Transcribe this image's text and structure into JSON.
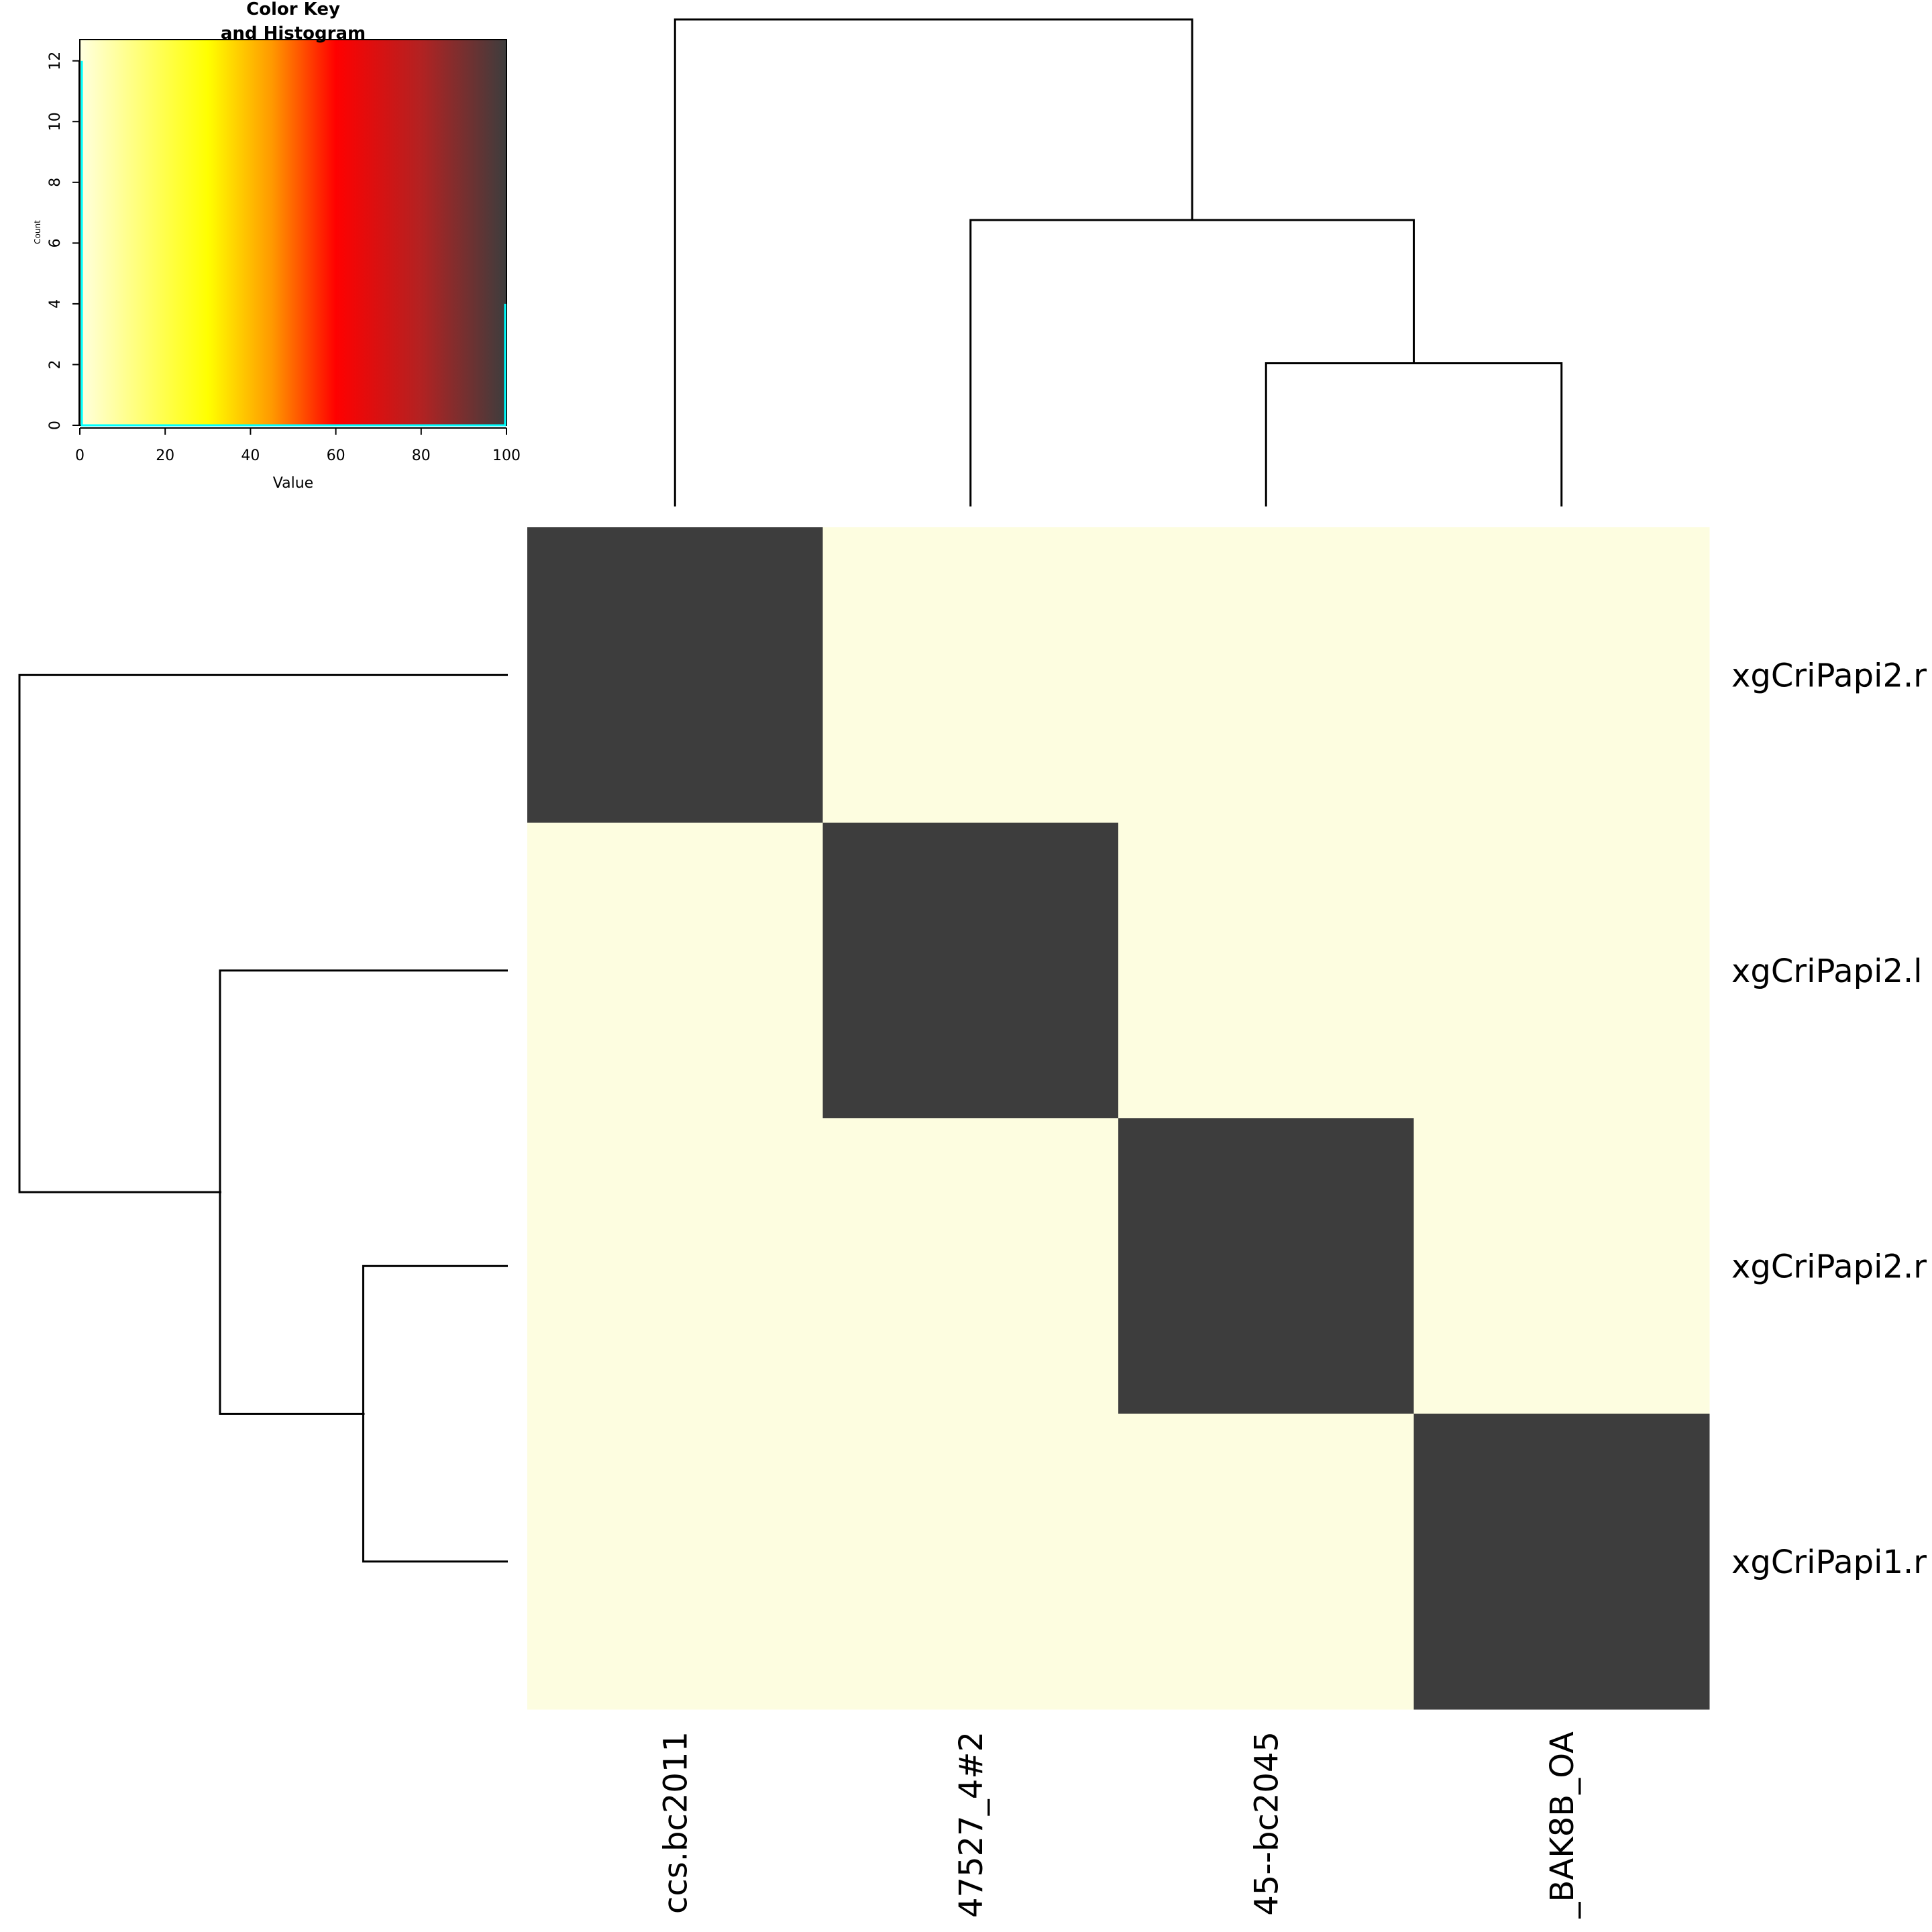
{
  "chart_data": {
    "type": "heatmap",
    "row_labels": [
      "xgCriPapi2.r",
      "xgCriPapi2.l",
      "xgCriPapi2.r",
      "xgCriPapi1.r"
    ],
    "col_labels": [
      "ccs.bc2011",
      "47527_4#2",
      "45--bc2045",
      "_BAK8B_OA"
    ],
    "values": [
      [
        100,
        0,
        0,
        0
      ],
      [
        0,
        100,
        0,
        0
      ],
      [
        0,
        0,
        100,
        0
      ],
      [
        0,
        0,
        0,
        100
      ]
    ],
    "dendrogram_col": {
      "merges": [
        [
          2,
          3,
          1.0
        ],
        [
          1,
          "c23",
          2.0
        ],
        [
          0,
          "c123",
          3.4
        ]
      ]
    },
    "dendrogram_row": {
      "merges": [
        [
          2,
          3,
          1.0
        ],
        [
          1,
          "r23",
          2.0
        ],
        [
          0,
          "r123",
          3.4
        ]
      ]
    },
    "color_key": {
      "title_line1": "Color Key",
      "title_line2": "and Histogram",
      "xlabel": "Value",
      "ylabel": "Count",
      "xlim": [
        0,
        100
      ],
      "ylim": [
        0,
        12.7
      ],
      "xticks": [
        "0",
        "20",
        "40",
        "60",
        "80",
        "100"
      ],
      "yticks": [
        "0",
        "2",
        "4",
        "6",
        "8",
        "10",
        "12"
      ],
      "histogram": [
        {
          "value": 0,
          "count": 12
        },
        {
          "value": 100,
          "count": 4
        }
      ],
      "histogram_color": "#00ffff",
      "gradient": [
        {
          "value": 0,
          "color": "#ffffe0"
        },
        {
          "value": 30,
          "color": "#ffff00"
        },
        {
          "value": 45,
          "color": "#ff9900"
        },
        {
          "value": 60,
          "color": "#ff0000"
        },
        {
          "value": 80,
          "color": "#b22222"
        },
        {
          "value": 100,
          "color": "#3d3d3d"
        }
      ]
    },
    "colors": {
      "low": "#fdfde0",
      "high": "#3d3d3d"
    }
  }
}
